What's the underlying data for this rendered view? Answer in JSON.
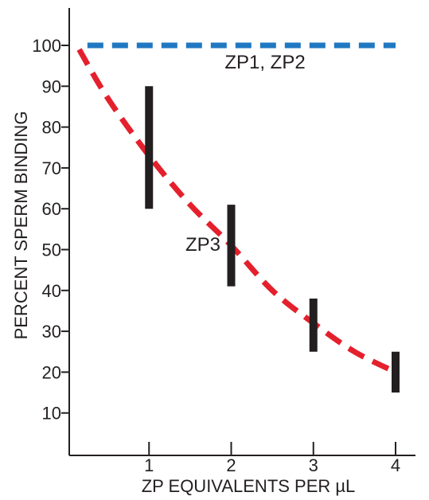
{
  "chart_data": {
    "type": "line",
    "xlabel": "ZP EQUIVALENTS PER µL",
    "ylabel": "PERCENT SPERM BINDING",
    "xlim": [
      0,
      4.2
    ],
    "ylim": [
      0,
      110
    ],
    "x_ticks": [
      "1",
      "2",
      "3",
      "4"
    ],
    "y_ticks": [
      "10",
      "20",
      "30",
      "40",
      "50",
      "60",
      "70",
      "80",
      "90",
      "100"
    ],
    "grid": false,
    "legend": "none",
    "series": [
      {
        "name": "ZP1, ZP2",
        "style": "dashed",
        "color": "#1f78c1",
        "x": [
          0.25,
          4.0
        ],
        "y": [
          100,
          100
        ]
      },
      {
        "name": "ZP3",
        "style": "dashed",
        "color": "#e4202d",
        "x": [
          0.15,
          0.5,
          1.0,
          1.5,
          2.0,
          2.5,
          3.0,
          3.5,
          4.0
        ],
        "y": [
          99,
          87,
          73,
          61,
          51,
          40,
          32,
          25,
          20
        ],
        "error_bars": [
          {
            "x": 1,
            "low": 60,
            "high": 90
          },
          {
            "x": 2,
            "low": 41,
            "high": 61
          },
          {
            "x": 3,
            "low": 25,
            "high": 38
          },
          {
            "x": 4,
            "low": 15,
            "high": 25
          }
        ]
      }
    ]
  }
}
